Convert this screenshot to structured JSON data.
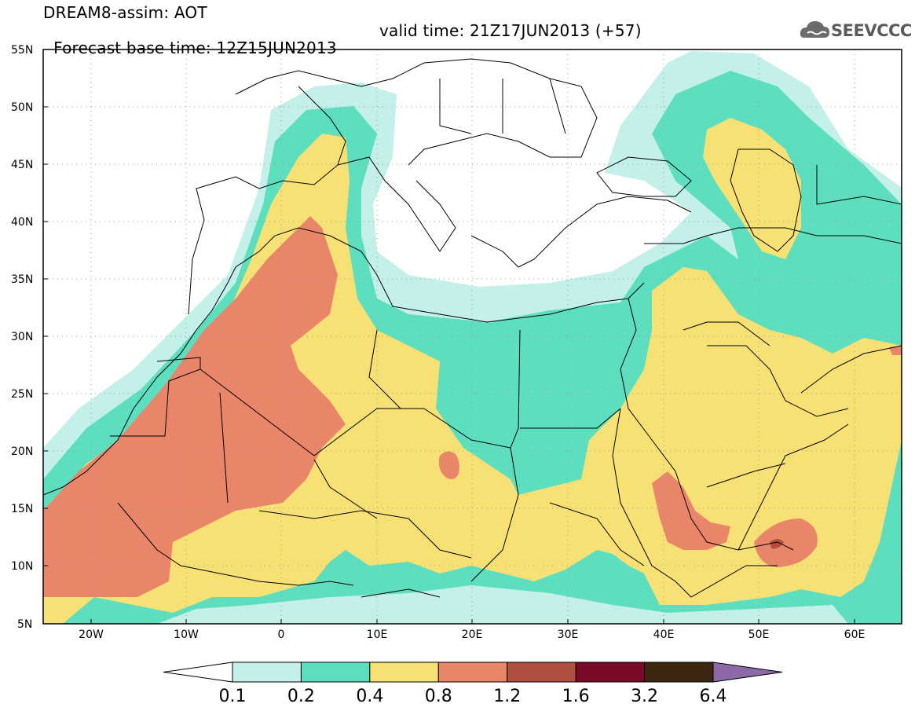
{
  "header": {
    "line1": "DREAM8-assim: AOT",
    "base_time": "Forecast base time: 12Z15JUN2013",
    "valid_time": "valid time: 21Z17JUN2013 (+57)"
  },
  "logo": {
    "text": "SEEVCCC",
    "icon": "cloud-icon"
  },
  "axes": {
    "lat_labels": [
      "55N",
      "50N",
      "45N",
      "40N",
      "35N",
      "30N",
      "25N",
      "20N",
      "15N",
      "10N",
      "5N"
    ],
    "lon_labels": [
      "20W",
      "10W",
      "0",
      "10E",
      "20E",
      "30E",
      "40E",
      "50E",
      "60E"
    ]
  },
  "legend": {
    "levels": [
      "0.1",
      "0.2",
      "0.4",
      "0.8",
      "1.2",
      "1.6",
      "3.2",
      "6.4"
    ],
    "colors": [
      "#ffffff",
      "#c4f0ea",
      "#5ddfbf",
      "#f7e174",
      "#e9866a",
      "#b05040",
      "#7a0a26",
      "#3d2612",
      "#8c6aa8"
    ]
  }
}
